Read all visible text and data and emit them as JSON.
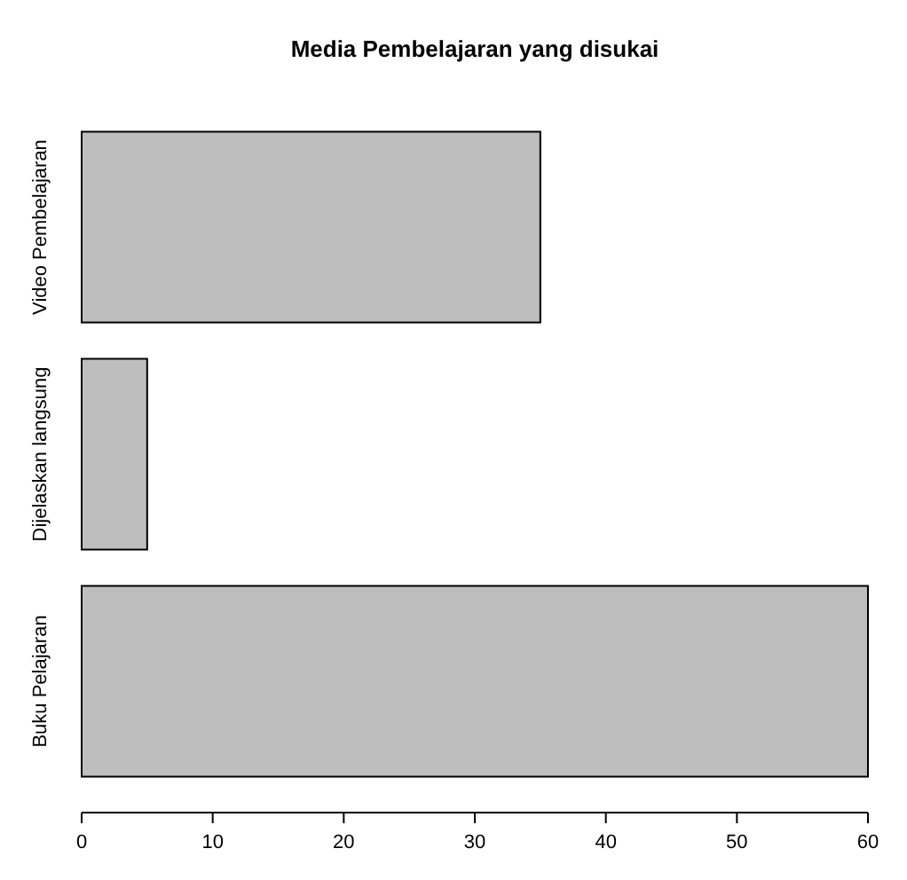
{
  "chart_data": {
    "type": "bar",
    "orientation": "horizontal",
    "title": "Media Pembelajaran yang disukai",
    "categories": [
      "Video Pembelajaran",
      "Dijelaskan langsung",
      "Buku Pelajaran"
    ],
    "values": [
      35,
      5,
      60
    ],
    "color": "#bebebe",
    "xlim": [
      0,
      60
    ],
    "xticks": [
      0,
      10,
      20,
      30,
      40,
      50,
      60
    ]
  }
}
